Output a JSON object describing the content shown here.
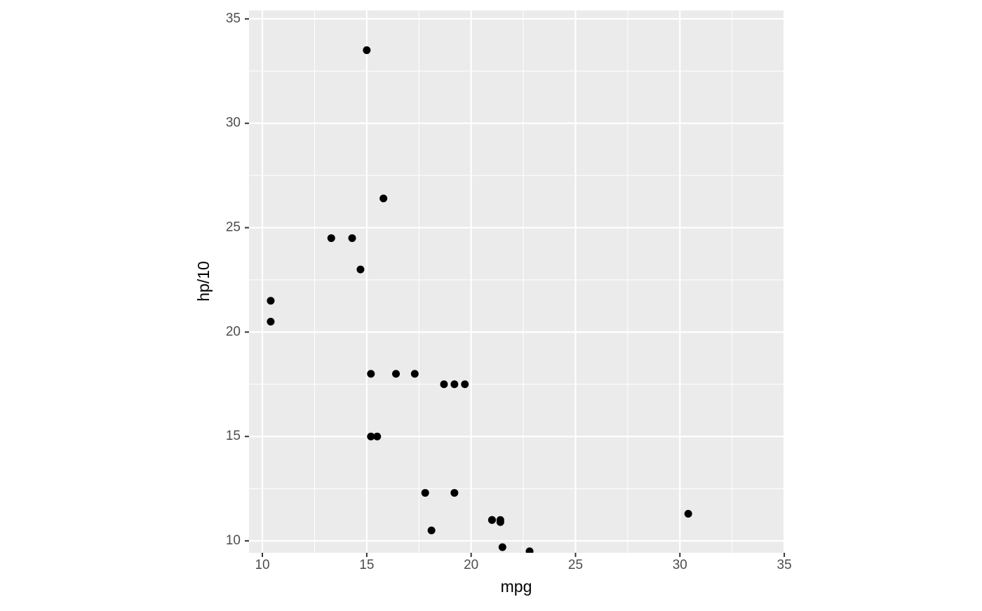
{
  "chart_data": {
    "type": "scatter",
    "x_label": "mpg",
    "y_label": "hp/10",
    "series": [
      {
        "color": "#000000",
        "x": [
          21.0,
          21.0,
          22.8,
          21.4,
          18.7,
          18.1,
          14.3,
          19.2,
          17.8,
          16.4,
          17.3,
          15.2,
          10.4,
          10.4,
          14.7,
          21.5,
          15.5,
          15.2,
          13.3,
          19.2,
          30.4,
          15.8,
          19.7,
          15.0,
          21.4
        ],
        "values": [
          11.0,
          11.0,
          9.5,
          11.0,
          17.5,
          10.5,
          24.5,
          12.3,
          12.3,
          18.0,
          18.0,
          18.0,
          20.5,
          21.5,
          23.0,
          9.7,
          15.0,
          15.0,
          24.5,
          17.5,
          11.3,
          26.4,
          17.5,
          33.5,
          10.9
        ]
      }
    ],
    "xlim": [
      9.36,
      35.03
    ],
    "ylim": [
      9.43,
      35.4
    ],
    "xticks": [
      10,
      15,
      20,
      25,
      30,
      35
    ],
    "yticks": [
      10,
      15,
      20,
      25,
      30,
      35
    ],
    "minor_xticks": [
      12.5,
      17.5,
      22.5,
      27.5,
      32.5
    ],
    "minor_yticks": [
      12.5,
      17.5,
      22.5,
      27.5,
      32.5
    ],
    "grid": true,
    "panel_color": "#ebebeb"
  }
}
